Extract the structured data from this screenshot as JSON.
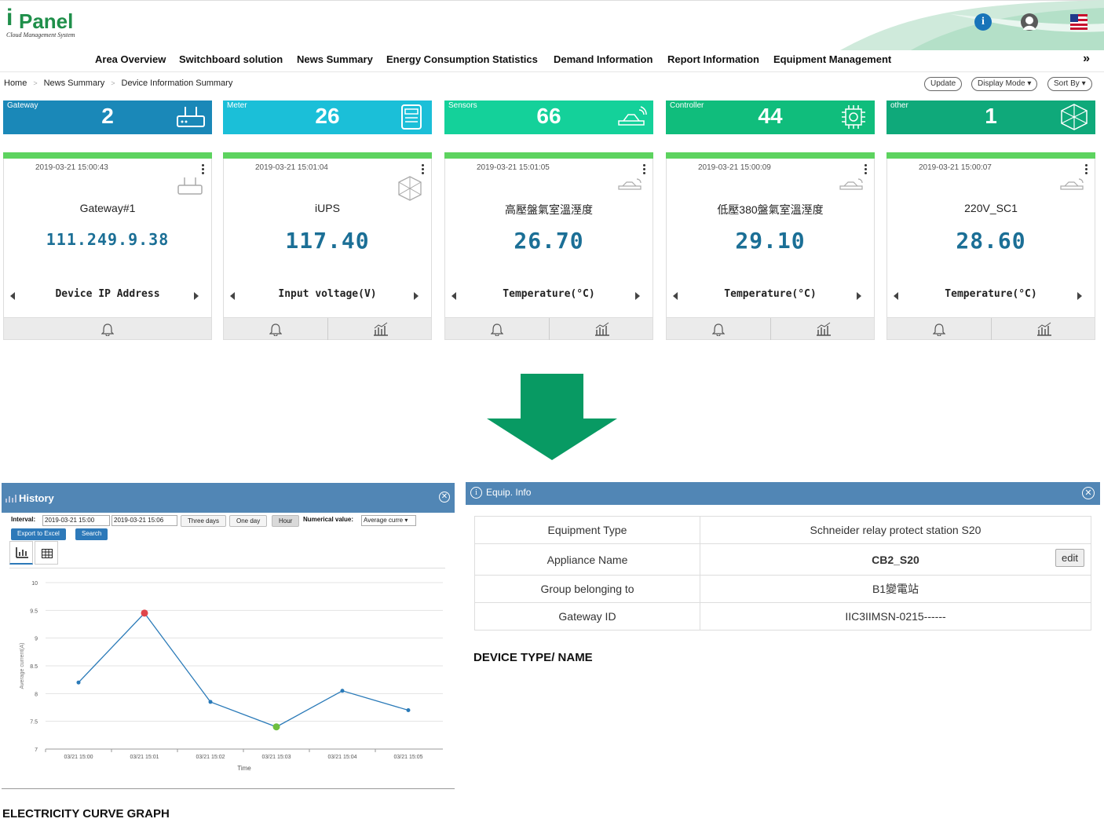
{
  "app": {
    "logo_i": "i",
    "logo_name": "Panel",
    "logo_sub": "Cloud Management System"
  },
  "header_icons": [
    "info-icon",
    "user-icon",
    "us-flag-icon"
  ],
  "nav": {
    "items": [
      "Area Overview",
      "Switchboard solution",
      "News Summary",
      "Energy Consumption Statistics",
      "Demand Information",
      "Report Information",
      "Equipment Management"
    ],
    "more": "»"
  },
  "breadcrumb": [
    "Home",
    "News Summary",
    "Device Information Summary"
  ],
  "toolbar": {
    "update": "Update",
    "display_mode": "Display Mode ▾",
    "sort_by": "Sort By ▾"
  },
  "tiles": [
    {
      "label": "Gateway",
      "value": "2",
      "color": "#1a88b8",
      "icon": "router-icon"
    },
    {
      "label": "Meter",
      "value": "26",
      "color": "#1bbfd8",
      "icon": "meter-icon"
    },
    {
      "label": "Sensors",
      "value": "66",
      "color": "#14d19a",
      "icon": "sensor-icon"
    },
    {
      "label": "Controller",
      "value": "44",
      "color": "#10bd7c",
      "icon": "chip-icon"
    },
    {
      "label": "other",
      "value": "1",
      "color": "#0fa97a",
      "icon": "cube-icon"
    }
  ],
  "cards": [
    {
      "ts": "2019-03-21 15:00:43",
      "name": "Gateway#1",
      "value": "111.249.9.38",
      "label": "Device IP Address"
    },
    {
      "ts": "2019-03-21 15:01:04",
      "name": "iUPS",
      "value": "117.40",
      "label": "Input voltage(V)"
    },
    {
      "ts": "2019-03-21 15:01:05",
      "name": "高壓盤氣室溫溼度",
      "value": "26.70",
      "label": "Temperature(°C)"
    },
    {
      "ts": "2019-03-21 15:00:09",
      "name": "低壓380盤氣室溫溼度",
      "value": "29.10",
      "label": "Temperature(°C)"
    },
    {
      "ts": "2019-03-21 15:00:07",
      "name": "220V_SC1",
      "value": "28.60",
      "label": "Temperature(°C)"
    }
  ],
  "history": {
    "title": "History",
    "interval_label": "Interval:",
    "from": "2019-03-21 15:00",
    "to": "2019-03-21 15:06",
    "three_days": "Three days",
    "one_day": "One day",
    "hour": "Hour",
    "numerical_label": "Numerical value:",
    "numerical_value": "Average curre ▾",
    "export": "Export to Excel",
    "search": "Search"
  },
  "chart_data": {
    "type": "line",
    "x": [
      "03/21 15:00",
      "03/21 15:01",
      "03/21 15:02",
      "03/21 15:03",
      "03/21 15:04",
      "03/21 15:05"
    ],
    "series": [
      {
        "values": [
          8.2,
          9.45,
          7.85,
          7.4,
          8.05,
          7.7
        ]
      }
    ],
    "max_point_index": 1,
    "min_point_index": 3,
    "xlabel": "Time",
    "ylabel": "Average current(A)",
    "ylim": [
      7,
      10
    ],
    "yticks": [
      7,
      7.5,
      8,
      8.5,
      9,
      9.5,
      10
    ],
    "grid": true,
    "line_color": "#2a7ab8",
    "max_color": "#e0454a",
    "min_color": "#6fbf3f"
  },
  "equip": {
    "title": "Equip. Info",
    "rows": [
      {
        "k": "Equipment Type",
        "v": "Schneider relay protect station S20"
      },
      {
        "k": "Appliance Name",
        "v": "CB2_S20"
      },
      {
        "k": "Group belonging to",
        "v": "B1變電站"
      },
      {
        "k": "Gateway ID",
        "v": "IIC3IIMSN-0215------"
      }
    ],
    "edit": "edit"
  },
  "captions": {
    "device": "DEVICE TYPE/ NAME",
    "electricity": "ELECTRICITY CURVE GRAPH"
  },
  "arrow_color": "#089a63"
}
